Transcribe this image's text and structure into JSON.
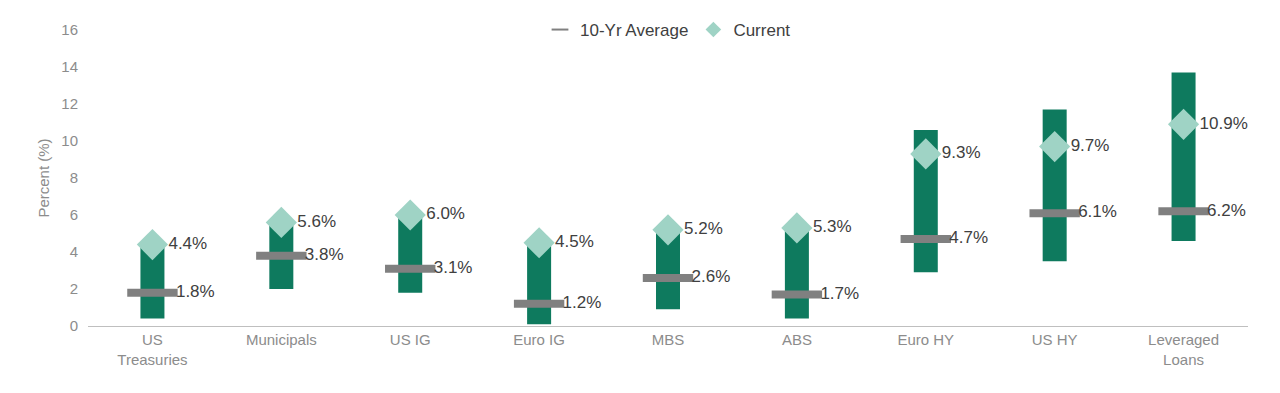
{
  "chart_data": {
    "type": "range",
    "categories": [
      "US Treasuries",
      "Municipals",
      "US IG",
      "Euro IG",
      "MBS",
      "ABS",
      "Euro HY",
      "US HY",
      "Leveraged Loans"
    ],
    "ranges": {
      "low": [
        0.4,
        2.0,
        1.8,
        0.1,
        0.9,
        0.4,
        2.9,
        3.5,
        4.6
      ],
      "high": [
        4.4,
        5.6,
        6.0,
        4.5,
        5.2,
        5.3,
        10.6,
        11.7,
        13.7
      ],
      "color": "#0e7a5e"
    },
    "series": [
      {
        "name": "10-Yr Average",
        "marker": "dash",
        "color": "#808080",
        "values": [
          1.8,
          3.8,
          3.1,
          1.2,
          2.6,
          1.7,
          4.7,
          6.1,
          6.2
        ],
        "value_labels": [
          "1.8%",
          "3.8%",
          "3.1%",
          "1.2%",
          "2.6%",
          "1.7%",
          "4.7%",
          "6.1%",
          "6.2%"
        ]
      },
      {
        "name": "Current",
        "marker": "diamond",
        "color": "#9fd3c5",
        "values": [
          4.4,
          5.6,
          6.0,
          4.5,
          5.2,
          5.3,
          9.3,
          9.7,
          10.9
        ],
        "value_labels": [
          "4.4%",
          "5.6%",
          "6.0%",
          "4.5%",
          "5.2%",
          "5.3%",
          "9.3%",
          "9.7%",
          "10.9%"
        ]
      }
    ],
    "y_label": "Percent (%)",
    "ylim": [
      0,
      16
    ],
    "yticks": [
      0,
      2,
      4,
      6,
      8,
      10,
      12,
      14,
      16
    ],
    "grid": false,
    "data_labels": true,
    "legend": "top"
  }
}
